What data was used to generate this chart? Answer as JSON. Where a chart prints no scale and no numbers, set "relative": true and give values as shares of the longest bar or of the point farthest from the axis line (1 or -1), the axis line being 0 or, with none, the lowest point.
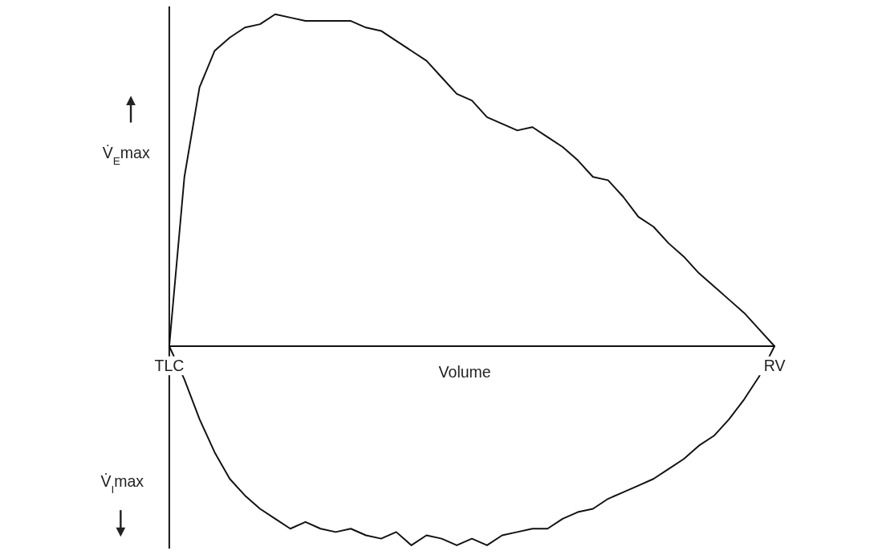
{
  "chart_data": {
    "type": "line",
    "relative": true,
    "xlabel": "Volume",
    "categories": [
      "TLC",
      null,
      null,
      null,
      null,
      null,
      null,
      null,
      null,
      null,
      null,
      null,
      null,
      null,
      null,
      null,
      null,
      null,
      null,
      null,
      null,
      null,
      null,
      null,
      null,
      null,
      null,
      null,
      null,
      null,
      null,
      null,
      null,
      null,
      null,
      null,
      null,
      null,
      null,
      null,
      "RV"
    ],
    "annotations": [
      "V̇$_{E}$max",
      "V̇$_{I}$max"
    ],
    "grid": false,
    "marker": "none",
    "line_style": "solid",
    "series": [
      {
        "color": "#111111",
        "values": [
          0,
          0.51,
          0.78,
          0.89,
          0.93,
          0.96,
          0.97,
          1,
          0.99,
          0.98,
          0.98,
          0.98,
          0.98,
          0.96,
          0.95,
          0.92,
          0.89,
          0.86,
          0.81,
          0.76,
          0.74,
          0.69,
          0.67,
          0.65,
          0.66,
          0.63,
          0.6,
          0.56,
          0.51,
          0.5,
          0.45,
          0.39,
          0.36,
          0.31,
          0.27,
          0.22,
          0.18,
          0.14,
          0.1,
          0.05,
          0
        ]
      },
      {
        "color": "#111111",
        "values": [
          0,
          -0.1,
          -0.22,
          -0.32,
          -0.4,
          -0.45,
          -0.49,
          -0.52,
          -0.55,
          -0.53,
          -0.55,
          -0.56,
          -0.55,
          -0.57,
          -0.58,
          -0.56,
          -0.6,
          -0.57,
          -0.58,
          -0.6,
          -0.58,
          -0.6,
          -0.57,
          -0.56,
          -0.55,
          -0.55,
          -0.52,
          -0.5,
          -0.49,
          -0.46,
          -0.44,
          -0.42,
          -0.4,
          -0.37,
          -0.34,
          -0.3,
          -0.27,
          -0.22,
          -0.16,
          -0.09,
          0
        ]
      }
    ]
  }
}
